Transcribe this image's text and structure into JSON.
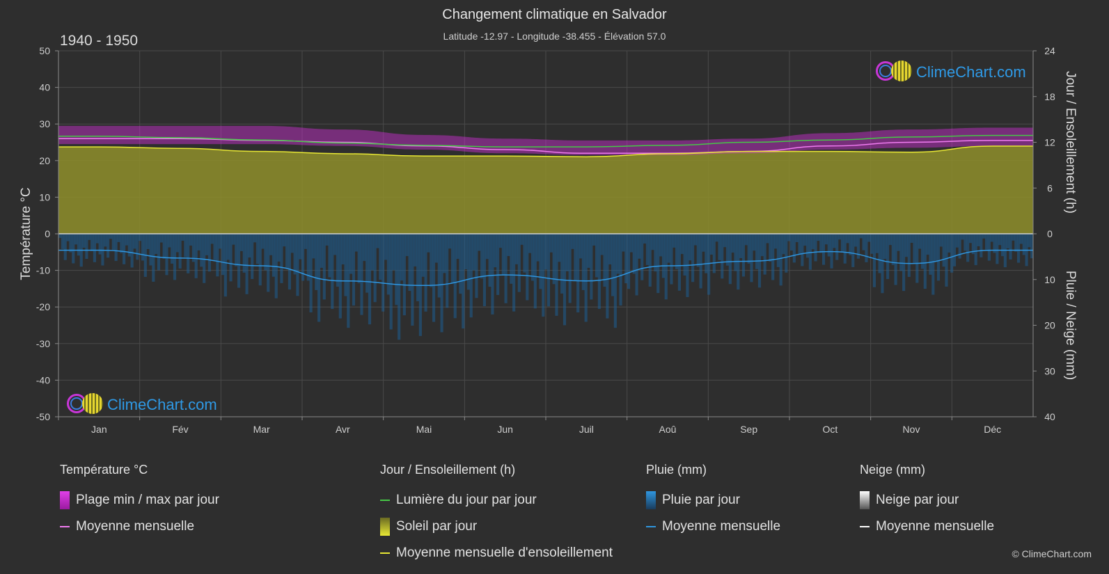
{
  "header": {
    "title": "Changement climatique en Salvador",
    "subtitle": "Latitude -12.97 - Longitude -38.455 - Élévation 57.0",
    "period": "1940 - 1950"
  },
  "brand": {
    "logo_text": "ClimeChart.com",
    "copyright": "© ClimeChart.com"
  },
  "axes": {
    "left_label": "Température °C",
    "right_top_label": "Jour / Ensoleillement (h)",
    "right_bottom_label": "Pluie / Neige (mm)",
    "left_ticks": [
      "50",
      "40",
      "30",
      "20",
      "10",
      "0",
      "-10",
      "-20",
      "-30",
      "-40",
      "-50"
    ],
    "right_top_ticks": [
      "24",
      "18",
      "12",
      "6",
      "0"
    ],
    "right_bottom_ticks": [
      "10",
      "20",
      "30",
      "40"
    ]
  },
  "legend": {
    "temperature": {
      "heading": "Température °C",
      "range_label": "Plage min / max par jour",
      "mean_label": "Moyenne mensuelle"
    },
    "sun": {
      "heading": "Jour / Ensoleillement (h)",
      "daylight_label": "Lumière du jour par jour",
      "sun_label": "Soleil par jour",
      "sun_mean_label": "Moyenne mensuelle d'ensoleillement"
    },
    "rain": {
      "heading": "Pluie (mm)",
      "rain_label": "Pluie par jour",
      "mean_label": "Moyenne mensuelle"
    },
    "snow": {
      "heading": "Neige (mm)",
      "snow_label": "Neige par jour",
      "mean_label": "Moyenne mensuelle"
    }
  },
  "colors": {
    "background": "#2e2e2e",
    "temp_range": "#d02fd6",
    "temp_mean": "#f07cf0",
    "daylight": "#46c846",
    "sunshine_fill": "#8e8e2a",
    "sunshine_mean": "#e8e834",
    "rain_fill": "#1d5e93",
    "rain_mean": "#2f96e0",
    "snow_mean": "#ffffff",
    "brand_blue": "#2f9ae6"
  },
  "chart_data": {
    "type": "area",
    "categories": [
      "Jan",
      "Fév",
      "Mar",
      "Avr",
      "Mai",
      "Jun",
      "Juil",
      "Aoû",
      "Sep",
      "Oct",
      "Nov",
      "Déc"
    ],
    "temperature_axis": {
      "unit": "°C",
      "ylim": [
        -50,
        50
      ]
    },
    "sun_axis": {
      "unit": "h",
      "ylim": [
        0,
        24
      ]
    },
    "precip_axis": {
      "unit": "mm",
      "ylim": [
        0,
        40
      ],
      "inverted": true
    },
    "grid": true,
    "series": [
      {
        "name": "Plage min / max par jour",
        "kind": "band",
        "axis": "temperature",
        "min": [
          24.5,
          24.5,
          24.5,
          24.0,
          23.0,
          22.0,
          21.5,
          21.5,
          22.0,
          23.0,
          23.5,
          24.0
        ],
        "max": [
          29.5,
          29.5,
          29.5,
          28.5,
          27.0,
          26.0,
          25.5,
          25.5,
          26.0,
          27.5,
          28.5,
          29.0
        ]
      },
      {
        "name": "Moyenne mensuelle",
        "kind": "line",
        "axis": "temperature",
        "values": [
          26.0,
          26.0,
          25.5,
          25.0,
          24.0,
          23.0,
          22.0,
          22.0,
          22.5,
          24.0,
          25.0,
          25.5
        ]
      },
      {
        "name": "Lumière du jour par jour",
        "kind": "line",
        "axis": "sun",
        "values": [
          12.8,
          12.6,
          12.3,
          11.9,
          11.6,
          11.4,
          11.4,
          11.6,
          12.0,
          12.3,
          12.7,
          12.9
        ]
      },
      {
        "name": "Soleil par jour",
        "kind": "area",
        "axis": "sun",
        "values": [
          11.4,
          11.2,
          10.8,
          10.5,
          10.2,
          10.2,
          10.1,
          10.5,
          10.8,
          10.8,
          10.7,
          11.5
        ]
      },
      {
        "name": "Moyenne mensuelle d'ensoleillement",
        "kind": "line",
        "axis": "sun",
        "values": [
          11.4,
          11.2,
          10.8,
          10.5,
          10.2,
          10.2,
          10.1,
          10.5,
          10.8,
          10.8,
          10.7,
          11.5
        ]
      },
      {
        "name": "Pluie par jour",
        "kind": "bars",
        "axis": "precip",
        "values": [
          3.6,
          5.3,
          7.0,
          10.3,
          11.3,
          9.0,
          10.3,
          7.0,
          6.0,
          3.9,
          6.5,
          3.6
        ]
      },
      {
        "name": "Moyenne mensuelle",
        "kind": "line",
        "axis": "precip",
        "values": [
          3.6,
          5.3,
          7.0,
          10.3,
          11.3,
          9.0,
          10.3,
          7.0,
          6.0,
          3.9,
          6.5,
          3.6
        ]
      }
    ]
  }
}
